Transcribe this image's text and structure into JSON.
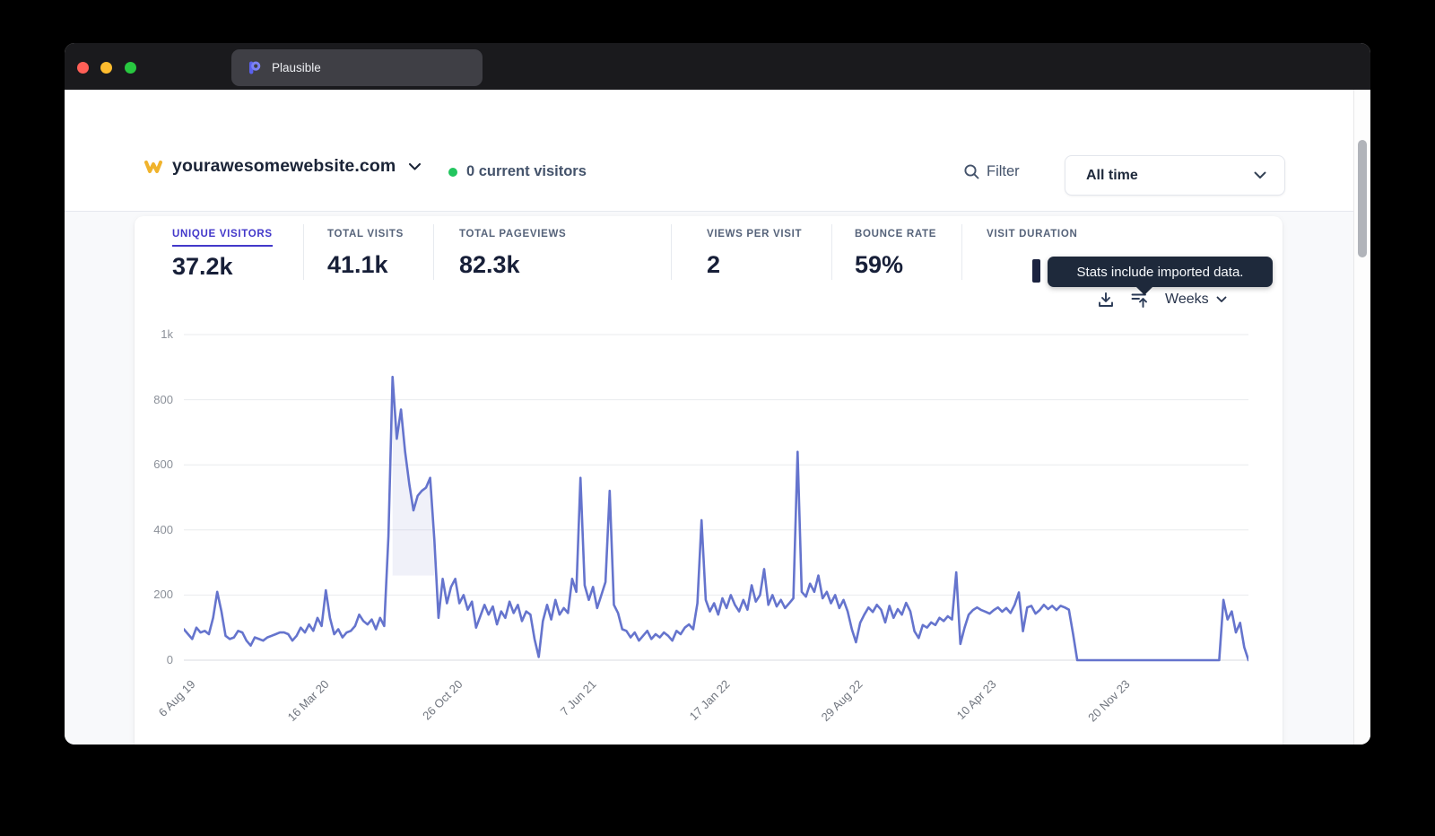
{
  "browser": {
    "tab_title": "Plausible",
    "traffic_lights": {
      "close": "#ff5f57",
      "minimize": "#febc2e",
      "zoom": "#28c840"
    }
  },
  "header": {
    "site_name": "yourawesomewebsite.com",
    "current_visitors": "0 current visitors",
    "filter_label": "Filter",
    "date_range": "All time"
  },
  "stats": {
    "items": [
      {
        "label": "UNIQUE VISITORS",
        "value": "37.2k",
        "active": true
      },
      {
        "label": "TOTAL VISITS",
        "value": "41.1k",
        "active": false
      },
      {
        "label": "TOTAL PAGEVIEWS",
        "value": "82.3k",
        "active": false
      },
      {
        "label": "VIEWS PER VISIT",
        "value": "2",
        "active": false
      },
      {
        "label": "BOUNCE RATE",
        "value": "59%",
        "active": false
      },
      {
        "label": "VISIT DURATION",
        "value": "",
        "active": false
      }
    ]
  },
  "tooltip": {
    "text": "Stats include imported data."
  },
  "controls": {
    "interval": "Weeks",
    "icons": [
      "download-icon",
      "import-icon"
    ]
  },
  "chart_data": {
    "type": "line",
    "title": "Unique visitors by week",
    "unit": "weekly",
    "x_tick_labels": [
      "6 Aug 19",
      "16 Mar 20",
      "26 Oct 20",
      "7 Jun 21",
      "17 Jan 22",
      "29 Aug 22",
      "10 Apr 23",
      "20 Nov 23"
    ],
    "x_tick_indices": [
      1,
      33,
      65,
      97,
      129,
      161,
      193,
      225
    ],
    "y_ticks": [
      0,
      200,
      400,
      600,
      800,
      1000
    ],
    "y_tick_labels": [
      "0",
      "200",
      "400",
      "600",
      "800",
      "1k"
    ],
    "ylim": [
      0,
      1000
    ],
    "grid": true,
    "legend": "none",
    "line_color": "#6574cd",
    "imported_region": {
      "start_index": 50,
      "end_index": 60,
      "baseline_value": 260,
      "fill_color": "#aab2e0",
      "fill_opacity": 0.18
    },
    "values": [
      95,
      80,
      65,
      100,
      85,
      90,
      80,
      130,
      210,
      150,
      75,
      65,
      70,
      90,
      85,
      60,
      45,
      70,
      65,
      60,
      70,
      75,
      80,
      85,
      85,
      80,
      60,
      75,
      100,
      85,
      110,
      90,
      130,
      105,
      215,
      130,
      80,
      95,
      70,
      85,
      90,
      105,
      140,
      120,
      110,
      125,
      95,
      130,
      105,
      380,
      870,
      680,
      770,
      640,
      540,
      460,
      505,
      520,
      530,
      560,
      370,
      130,
      250,
      175,
      225,
      250,
      175,
      200,
      155,
      180,
      100,
      135,
      170,
      140,
      165,
      110,
      150,
      130,
      180,
      145,
      170,
      120,
      150,
      140,
      65,
      10,
      120,
      170,
      125,
      185,
      140,
      160,
      145,
      250,
      210,
      560,
      230,
      185,
      225,
      160,
      200,
      240,
      520,
      170,
      145,
      95,
      90,
      70,
      85,
      60,
      75,
      90,
      65,
      80,
      70,
      85,
      75,
      60,
      90,
      80,
      100,
      110,
      95,
      175,
      430,
      185,
      150,
      175,
      140,
      190,
      160,
      200,
      170,
      150,
      185,
      155,
      230,
      180,
      200,
      280,
      170,
      200,
      165,
      185,
      160,
      175,
      190,
      640,
      210,
      195,
      235,
      210,
      260,
      190,
      210,
      175,
      200,
      160,
      185,
      150,
      95,
      55,
      115,
      140,
      162,
      148,
      170,
      155,
      116,
      167,
      130,
      157,
      140,
      176,
      150,
      89,
      68,
      108,
      100,
      116,
      108,
      130,
      120,
      135,
      125,
      270,
      50,
      100,
      140,
      154,
      162,
      154,
      149,
      143,
      154,
      162,
      149,
      160,
      145,
      170,
      208,
      89,
      162,
      167,
      143,
      154,
      170,
      157,
      167,
      154,
      167,
      162,
      155,
      80,
      0,
      0,
      0,
      0,
      0,
      0,
      0,
      0,
      0,
      0,
      0,
      0,
      0,
      0,
      0,
      0,
      0,
      0,
      0,
      0,
      0,
      0,
      0,
      0,
      0,
      0,
      0,
      0,
      0,
      0,
      0,
      0,
      0,
      0,
      0,
      185,
      125,
      150,
      85,
      115,
      40,
      0
    ]
  }
}
